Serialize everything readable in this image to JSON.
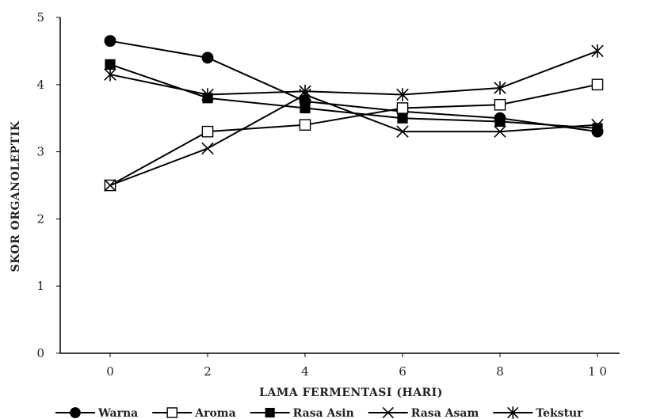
{
  "chart_data": {
    "type": "line",
    "title": "",
    "xlabel": "LAMA FERMENTASI (HARI)",
    "ylabel": "SKOR ORGANOLEPTIK",
    "x": [
      0,
      2,
      4,
      6,
      8,
      10
    ],
    "x_tick_labels": [
      "0",
      "2",
      "4",
      "6",
      "8",
      "1 0"
    ],
    "ylim": [
      0,
      5
    ],
    "y_ticks": [
      0,
      1,
      2,
      3,
      4,
      5
    ],
    "y_tick_labels": [
      "0",
      "1",
      "2",
      "3",
      "4",
      "5"
    ],
    "grid": false,
    "legend_position": "bottom",
    "series": [
      {
        "name": "Warna",
        "marker": "filled-circle",
        "values": [
          4.65,
          4.4,
          3.75,
          3.6,
          3.5,
          3.3
        ]
      },
      {
        "name": "Aroma",
        "marker": "open-square",
        "values": [
          2.5,
          3.3,
          3.4,
          3.65,
          3.7,
          4.0
        ]
      },
      {
        "name": "Rasa Asin",
        "marker": "filled-square",
        "values": [
          4.3,
          3.8,
          3.65,
          3.5,
          3.45,
          3.35
        ]
      },
      {
        "name": "Rasa Asam",
        "marker": "x",
        "values": [
          2.5,
          3.05,
          3.85,
          3.3,
          3.3,
          3.4
        ]
      },
      {
        "name": "Tekstur",
        "marker": "star",
        "values": [
          4.15,
          3.85,
          3.9,
          3.85,
          3.95,
          4.5
        ]
      }
    ],
    "line_color": "#000000"
  }
}
